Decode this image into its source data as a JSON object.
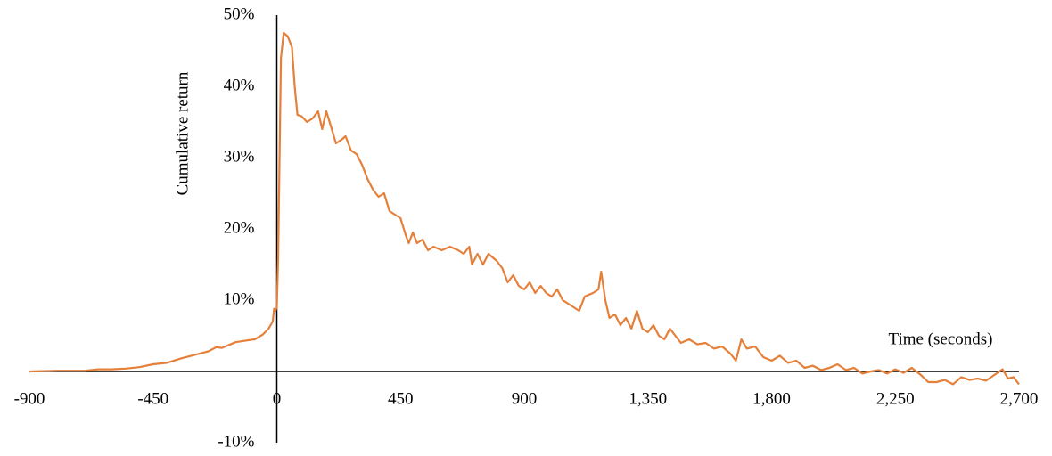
{
  "chart_data": {
    "type": "line",
    "y_label": "Cumulative return",
    "x_label": "Time (seconds)",
    "xlim": [
      -900,
      2700
    ],
    "xticks": [
      -900,
      -450,
      0,
      450,
      900,
      {
        "value": 1350,
        "label": "1,350"
      },
      {
        "value": 1800,
        "label": "1,800"
      },
      {
        "value": 2250,
        "label": "2,250"
      },
      {
        "value": 2700,
        "label": "2,700"
      }
    ],
    "ylim": [
      -10,
      50
    ],
    "yticks": [
      {
        "value": -10,
        "label": "-10%"
      },
      {
        "value": 10,
        "label": "10%"
      },
      {
        "value": 20,
        "label": "20%"
      },
      {
        "value": 30,
        "label": "30%"
      },
      {
        "value": 40,
        "label": "40%"
      },
      {
        "value": 50,
        "label": "50%"
      }
    ],
    "series": [
      {
        "color": "#e5803a",
        "x": [
          -900,
          -800,
          -700,
          -650,
          -600,
          -550,
          -500,
          -450,
          -400,
          -350,
          -300,
          -250,
          -220,
          -200,
          -150,
          -100,
          -80,
          -50,
          -30,
          -15,
          -10,
          -5,
          0,
          5,
          10,
          15,
          25,
          40,
          55,
          65,
          75,
          90,
          110,
          130,
          150,
          165,
          180,
          200,
          215,
          235,
          250,
          270,
          290,
          310,
          330,
          350,
          370,
          390,
          410,
          430,
          450,
          470,
          480,
          495,
          510,
          530,
          550,
          570,
          600,
          630,
          660,
          680,
          700,
          710,
          730,
          750,
          770,
          800,
          820,
          840,
          860,
          880,
          900,
          920,
          940,
          960,
          980,
          1000,
          1020,
          1040,
          1060,
          1080,
          1100,
          1120,
          1150,
          1170,
          1180,
          1195,
          1210,
          1230,
          1250,
          1270,
          1290,
          1310,
          1330,
          1350,
          1370,
          1390,
          1410,
          1430,
          1450,
          1470,
          1500,
          1530,
          1560,
          1590,
          1620,
          1650,
          1670,
          1690,
          1710,
          1740,
          1770,
          1800,
          1830,
          1860,
          1890,
          1920,
          1950,
          1980,
          2010,
          2040,
          2070,
          2100,
          2130,
          2160,
          2190,
          2220,
          2250,
          2280,
          2310,
          2340,
          2370,
          2400,
          2430,
          2460,
          2490,
          2520,
          2550,
          2580,
          2610,
          2640,
          2660,
          2680,
          2700
        ],
        "values": [
          0,
          0.1,
          0.1,
          0.3,
          0.3,
          0.4,
          0.6,
          1.0,
          1.2,
          1.8,
          2.3,
          2.8,
          3.4,
          3.3,
          4.1,
          4.4,
          4.5,
          5.2,
          6.0,
          7.0,
          8.8,
          8.5,
          9,
          16,
          30,
          44,
          47.5,
          47,
          45.5,
          40,
          36,
          35.8,
          35,
          35.5,
          36.5,
          34,
          36.5,
          34,
          32,
          32.5,
          33,
          31,
          30.5,
          29,
          27,
          25.5,
          24.5,
          25,
          22.5,
          22,
          21.5,
          19,
          18,
          19.5,
          18,
          18.5,
          17,
          17.5,
          17,
          17.5,
          17,
          16.5,
          17.5,
          15,
          16.5,
          15,
          16.5,
          15.5,
          14.5,
          12.5,
          13.5,
          12,
          11.5,
          12.5,
          11,
          12,
          11,
          10.5,
          11.5,
          10,
          9.5,
          9,
          8.5,
          10.5,
          11,
          11.5,
          14,
          10,
          7.5,
          8,
          6.5,
          7.5,
          6,
          8.5,
          6,
          5.5,
          6.5,
          5,
          4.5,
          6,
          5,
          4,
          4.5,
          3.8,
          4,
          3.2,
          3.5,
          2.5,
          1.5,
          4.5,
          3.2,
          3.5,
          2,
          1.5,
          2.2,
          1.2,
          1.5,
          0.5,
          0.8,
          0.2,
          0.5,
          1,
          0.2,
          0.5,
          -0.3,
          0,
          0.2,
          -0.3,
          0.3,
          -0.2,
          0.5,
          -0.4,
          -1.5,
          -1.5,
          -1.2,
          -1.8,
          -0.8,
          -1.2,
          -1.0,
          -1.3,
          -0.5,
          0.3,
          -1.0,
          -0.8,
          -1.8
        ]
      }
    ]
  }
}
